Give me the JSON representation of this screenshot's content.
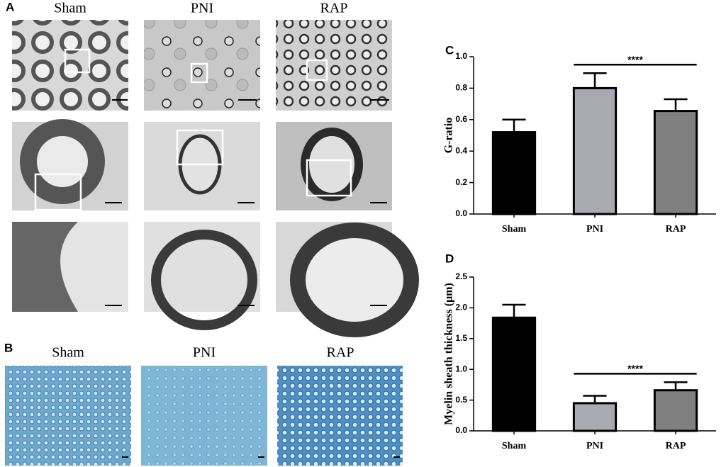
{
  "panel_a": {
    "label": "A",
    "columns": [
      "Sham",
      "PNI",
      "RAP"
    ]
  },
  "panel_b": {
    "label": "B",
    "columns": [
      "Sham",
      "PNI",
      "RAP"
    ]
  },
  "chart_data": [
    {
      "type": "bar",
      "panel_label": "C",
      "y_label": "G-ratio",
      "categories": [
        "Sham",
        "PNI",
        "RAP"
      ],
      "values": [
        0.52,
        0.8,
        0.655
      ],
      "errors": [
        0.08,
        0.095,
        0.075
      ],
      "colors": [
        "#000000",
        "#a9a9b0",
        "#808080"
      ],
      "ylim": [
        0,
        1.0
      ],
      "yticks": [
        {
          "value": 0,
          "label": "0.0"
        },
        0.2,
        0.4,
        0.6,
        0.8,
        {
          "value": 1.0,
          "label": "1.0"
        }
      ],
      "significance": {
        "label": "****",
        "between": [
          "PNI",
          "RAP"
        ]
      }
    },
    {
      "type": "bar",
      "panel_label": "D",
      "y_label": "Myelin sheath thickness (μm)",
      "categories": [
        "Sham",
        "PNI",
        "RAP"
      ],
      "values": [
        1.84,
        0.45,
        0.66
      ],
      "errors": [
        0.21,
        0.12,
        0.13
      ],
      "colors": [
        "#000000",
        "#a9a9b0",
        "#808080"
      ],
      "ylim": [
        0,
        2.5
      ],
      "yticks": [
        {
          "value": 0,
          "label": "0.0"
        },
        0.5,
        {
          "value": 1.0,
          "label": "1.0"
        },
        1.5,
        {
          "value": 2.0,
          "label": "2.0"
        },
        2.5
      ],
      "significance": {
        "label": "****",
        "between": [
          "PNI",
          "RAP"
        ]
      }
    }
  ]
}
